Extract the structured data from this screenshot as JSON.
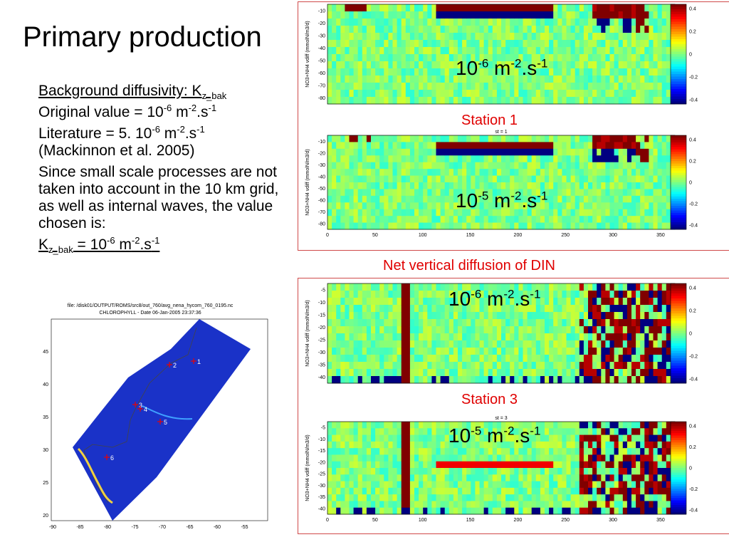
{
  "title": "Primary production",
  "bullets": {
    "b1_prefix": "Background diffusivity: K",
    "b1_sub": "z_bak",
    "b2_prefix": "Original value = 10",
    "b2_exp1": "-6",
    "b2_unit1": " m",
    "b2_exp2": "-2",
    "b2_unit2": ".s",
    "b2_exp3": "-1",
    "b3_prefix": "Literature = 5. 10",
    "b3_exp1": "-6",
    "b3_unit1": " m",
    "b3_exp2": "-2",
    "b3_unit2": ".s",
    "b3_exp3": "-1",
    "b3_ref": "(Mackinnon et al. 2005)",
    "b4": "Since small scale processes are not taken into account in the 10 km grid, as well as internal waves, the value chosen is:",
    "b5_k": "K",
    "b5_sub": "z_bak",
    "b5_eq": " = 10",
    "b5_exp1": "-6",
    "b5_unit1": " m",
    "b5_exp2": "-2",
    "b5_unit2": ".s",
    "b5_exp3": "-1"
  },
  "labels": {
    "station1": "Station 1",
    "station3": "Station 3",
    "net_vertical": "Net vertical diffusion of DIN",
    "exp_base": "10",
    "exp_m6": "-6",
    "exp_m5": "-5",
    "unit_m": " m",
    "unit_m_exp": "-2",
    "unit_s": ".s",
    "unit_s_exp": "-1"
  },
  "plots": {
    "ylabel": "NO3+NH4 vdiff (mmolN/m3/d)",
    "st1": "st = 1",
    "st3": "st = 3",
    "x_ticks": [
      "0",
      "50",
      "100",
      "150",
      "200",
      "250",
      "300",
      "350"
    ],
    "y_ticks_st1": [
      "-10",
      "-20",
      "-30",
      "-40",
      "-50",
      "-60",
      "-70",
      "-80"
    ],
    "y_ticks_st3": [
      "-5",
      "-10",
      "-15",
      "-20",
      "-25",
      "-30",
      "-35",
      "-40"
    ],
    "colorbar_ticks": [
      "0.4",
      "0.2",
      "0",
      "-0.2",
      "-0.4"
    ],
    "colors": {
      "low": "#00008f",
      "mid": "#7fff7f",
      "high": "#7f0000"
    }
  },
  "map": {
    "file_line": "file: /disk01/OUTPUT/ROMS/src8/out_760/avg_nena_hycom_760_0195.nc",
    "chl_line": "CHLOROPHYLL - Date 06-Jan-2005 23:37:36",
    "lat_ticks": [
      "45",
      "40",
      "35",
      "30",
      "25",
      "20"
    ],
    "lon_ticks": [
      "-90",
      "-85",
      "-80",
      "-75",
      "-70",
      "-65",
      "-60",
      "-55"
    ],
    "stations": [
      "1",
      "2",
      "3",
      "4",
      "5",
      "6"
    ]
  }
}
